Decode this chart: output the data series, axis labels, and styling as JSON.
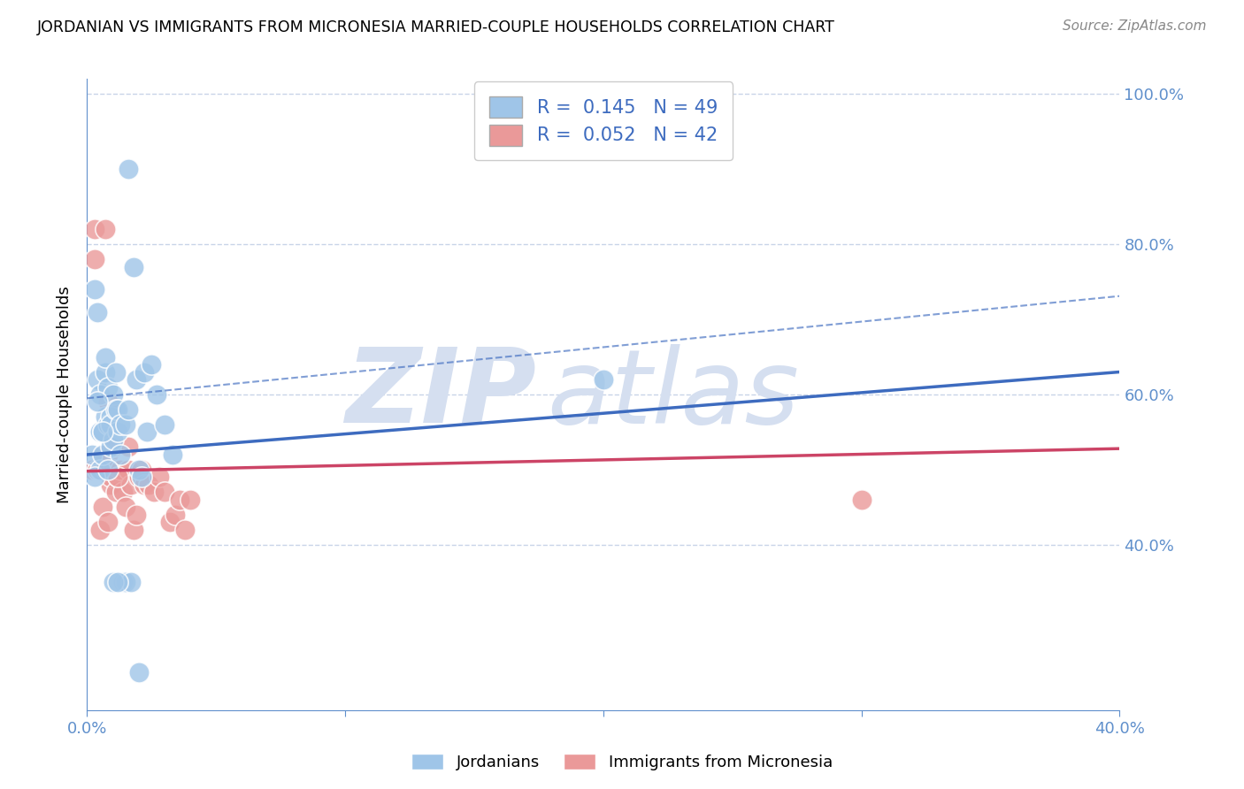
{
  "title": "JORDANIAN VS IMMIGRANTS FROM MICRONESIA MARRIED-COUPLE HOUSEHOLDS CORRELATION CHART",
  "source": "Source: ZipAtlas.com",
  "ylabel": "Married-couple Households",
  "x_min": 0.0,
  "x_max": 0.4,
  "y_min": 0.18,
  "y_max": 1.02,
  "yticks": [
    0.4,
    0.6,
    0.8,
    1.0
  ],
  "ytick_labels": [
    "40.0%",
    "60.0%",
    "80.0%",
    "100.0%"
  ],
  "blue_R": 0.145,
  "blue_N": 49,
  "pink_R": 0.052,
  "pink_N": 42,
  "blue_color": "#9fc5e8",
  "pink_color": "#ea9999",
  "blue_line_color": "#3d6bbf",
  "pink_line_color": "#cc4466",
  "axis_color": "#6090cc",
  "grid_color": "#c8d4e8",
  "watermark_color": "#d5dff0",
  "legend_label_blue": "Jordanians",
  "legend_label_pink": "Immigrants from Micronesia",
  "blue_intercept": 0.52,
  "blue_slope": 0.275,
  "blue_dash_intercept": 0.595,
  "blue_dash_slope": 0.34,
  "pink_intercept": 0.498,
  "pink_slope": 0.075,
  "blue_x": [
    0.002,
    0.003,
    0.004,
    0.004,
    0.005,
    0.005,
    0.005,
    0.006,
    0.006,
    0.007,
    0.007,
    0.007,
    0.008,
    0.008,
    0.009,
    0.009,
    0.009,
    0.01,
    0.01,
    0.011,
    0.011,
    0.012,
    0.012,
    0.013,
    0.013,
    0.014,
    0.015,
    0.015,
    0.016,
    0.017,
    0.018,
    0.019,
    0.02,
    0.021,
    0.022,
    0.023,
    0.025,
    0.027,
    0.03,
    0.033,
    0.003,
    0.004,
    0.006,
    0.008,
    0.01,
    0.012,
    0.2,
    0.016,
    0.02
  ],
  "blue_y": [
    0.52,
    0.74,
    0.71,
    0.62,
    0.55,
    0.6,
    0.5,
    0.52,
    0.55,
    0.63,
    0.57,
    0.65,
    0.61,
    0.56,
    0.57,
    0.53,
    0.56,
    0.6,
    0.54,
    0.58,
    0.63,
    0.58,
    0.55,
    0.56,
    0.52,
    0.35,
    0.56,
    0.35,
    0.58,
    0.35,
    0.77,
    0.62,
    0.5,
    0.49,
    0.63,
    0.55,
    0.64,
    0.6,
    0.56,
    0.52,
    0.49,
    0.59,
    0.55,
    0.5,
    0.35,
    0.35,
    0.62,
    0.9,
    0.23
  ],
  "pink_x": [
    0.002,
    0.003,
    0.003,
    0.004,
    0.004,
    0.005,
    0.005,
    0.006,
    0.007,
    0.007,
    0.008,
    0.008,
    0.009,
    0.009,
    0.01,
    0.01,
    0.011,
    0.012,
    0.013,
    0.014,
    0.015,
    0.016,
    0.017,
    0.018,
    0.019,
    0.02,
    0.021,
    0.022,
    0.024,
    0.026,
    0.028,
    0.03,
    0.032,
    0.034,
    0.036,
    0.038,
    0.04,
    0.006,
    0.008,
    0.3,
    0.012,
    0.016
  ],
  "pink_y": [
    0.5,
    0.82,
    0.78,
    0.5,
    0.5,
    0.5,
    0.42,
    0.45,
    0.82,
    0.5,
    0.52,
    0.59,
    0.48,
    0.49,
    0.53,
    0.5,
    0.47,
    0.49,
    0.5,
    0.47,
    0.45,
    0.5,
    0.48,
    0.42,
    0.44,
    0.49,
    0.5,
    0.48,
    0.48,
    0.47,
    0.49,
    0.47,
    0.43,
    0.44,
    0.46,
    0.42,
    0.46,
    0.52,
    0.43,
    0.46,
    0.49,
    0.53
  ]
}
